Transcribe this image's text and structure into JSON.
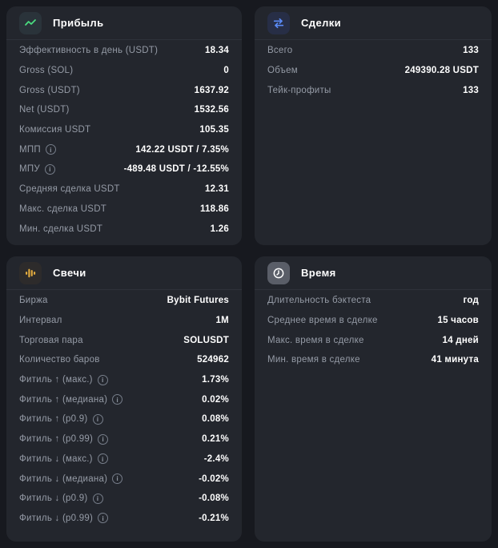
{
  "colors": {
    "page_bg": "#17191f",
    "card_bg": "#23262d",
    "label": "#959ba6",
    "value": "#ffffff",
    "profit_icon_green": "#4ade80",
    "trades_icon_blue": "#5b8bf7",
    "candles_icon_gold": "#e2ab3f",
    "time_icon_bg": "#5a5e68"
  },
  "cards": {
    "profit": {
      "title": "Прибыль",
      "icon": "trend-up-icon",
      "rows": [
        {
          "label": "Эффективность в день (USDT)",
          "value": "18.34",
          "info": false
        },
        {
          "label": "Gross (SOL)",
          "value": "0",
          "info": false
        },
        {
          "label": "Gross (USDT)",
          "value": "1637.92",
          "info": false
        },
        {
          "label": "Net (USDT)",
          "value": "1532.56",
          "info": false
        },
        {
          "label": "Комиссия USDT",
          "value": "105.35",
          "info": false
        },
        {
          "label": "МПП",
          "value": "142.22 USDT / 7.35%",
          "info": true
        },
        {
          "label": "МПУ",
          "value": "-489.48 USDT / -12.55%",
          "info": true
        },
        {
          "label": "Средняя сделка USDT",
          "value": "12.31",
          "info": false
        },
        {
          "label": "Макс. сделка USDT",
          "value": "118.86",
          "info": false
        },
        {
          "label": "Мин. сделка USDT",
          "value": "1.26",
          "info": false
        }
      ]
    },
    "trades": {
      "title": "Сделки",
      "icon": "transfer-arrows-icon",
      "rows": [
        {
          "label": "Всего",
          "value": "133",
          "info": false
        },
        {
          "label": "Объем",
          "value": "249390.28 USDT",
          "info": false
        },
        {
          "label": "Тейк-профиты",
          "value": "133",
          "info": false
        }
      ]
    },
    "candles": {
      "title": "Свечи",
      "icon": "candlestick-icon",
      "rows": [
        {
          "label": "Биржа",
          "value": "Bybit Futures",
          "info": false
        },
        {
          "label": "Интервал",
          "value": "1M",
          "info": false
        },
        {
          "label": "Торговая пара",
          "value": "SOLUSDT",
          "info": false
        },
        {
          "label": "Количество баров",
          "value": "524962",
          "info": false
        },
        {
          "label": "Фитиль ↑ (макс.)",
          "value": "1.73%",
          "info": true
        },
        {
          "label": "Фитиль ↑ (медиана)",
          "value": "0.02%",
          "info": true
        },
        {
          "label": "Фитиль ↑ (p0.9)",
          "value": "0.08%",
          "info": true
        },
        {
          "label": "Фитиль ↑ (p0.99)",
          "value": "0.21%",
          "info": true
        },
        {
          "label": "Фитиль ↓ (макс.)",
          "value": "-2.4%",
          "info": true
        },
        {
          "label": "Фитиль ↓ (медиана)",
          "value": "-0.02%",
          "info": true
        },
        {
          "label": "Фитиль ↓ (p0.9)",
          "value": "-0.08%",
          "info": true
        },
        {
          "label": "Фитиль ↓ (p0.99)",
          "value": "-0.21%",
          "info": true
        }
      ]
    },
    "time": {
      "title": "Время",
      "icon": "clock-icon",
      "rows": [
        {
          "label": "Длительность бэктеста",
          "value": "год",
          "info": false
        },
        {
          "label": "Среднее время в сделке",
          "value": "15 часов",
          "info": false
        },
        {
          "label": "Макс. время в сделке",
          "value": "14 дней",
          "info": false
        },
        {
          "label": "Мин. время в сделке",
          "value": "41 минута",
          "info": false
        }
      ]
    }
  }
}
